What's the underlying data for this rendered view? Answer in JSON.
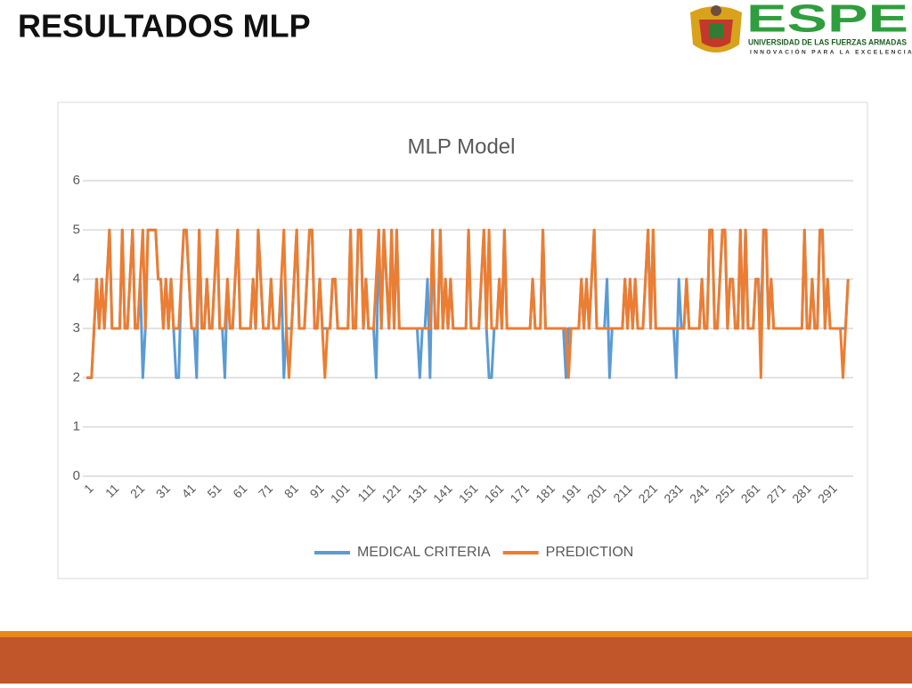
{
  "header": {
    "title": "RESULTADOS MLP",
    "logo_text": "ESPE",
    "logo_subtitle": "UNIVERSIDAD DE LAS FUERZAS ARMADAS",
    "logo_tagline": "INNOVACIÓN PARA LA EXCELENCIA"
  },
  "chart_data": {
    "type": "line",
    "title": "MLP Model",
    "grid": true,
    "legend": "bottom",
    "xlim": [
      1,
      300
    ],
    "xticks": [
      1,
      11,
      21,
      31,
      41,
      51,
      61,
      71,
      81,
      91,
      101,
      111,
      121,
      131,
      141,
      151,
      161,
      171,
      181,
      191,
      201,
      211,
      221,
      231,
      241,
      251,
      261,
      271,
      281,
      291
    ],
    "ylim": [
      0,
      6
    ],
    "yticks": [
      0,
      1,
      2,
      3,
      4,
      5,
      6
    ],
    "x": [
      1,
      2,
      3,
      4,
      5,
      6,
      7,
      8,
      9,
      10,
      11,
      12,
      13,
      14,
      15,
      16,
      17,
      18,
      19,
      20,
      21,
      22,
      23,
      24,
      25,
      26,
      27,
      28,
      29,
      30,
      31,
      32,
      33,
      34,
      35,
      36,
      37,
      38,
      39,
      40,
      41,
      42,
      43,
      44,
      45,
      46,
      47,
      48,
      49,
      50,
      51,
      52,
      53,
      54,
      55,
      56,
      57,
      58,
      59,
      60,
      61,
      62,
      63,
      64,
      65,
      66,
      67,
      68,
      69,
      70,
      71,
      72,
      73,
      74,
      75,
      76,
      77,
      78,
      79,
      80,
      81,
      82,
      83,
      84,
      85,
      86,
      87,
      88,
      89,
      90,
      91,
      92,
      93,
      94,
      95,
      96,
      97,
      98,
      99,
      100,
      101,
      102,
      103,
      104,
      105,
      106,
      107,
      108,
      109,
      110,
      111,
      112,
      113,
      114,
      115,
      116,
      117,
      118,
      119,
      120,
      121,
      122,
      123,
      124,
      125,
      126,
      127,
      128,
      129,
      130,
      131,
      132,
      133,
      134,
      135,
      136,
      137,
      138,
      139,
      140,
      141,
      142,
      143,
      144,
      145,
      146,
      147,
      148,
      149,
      150,
      151,
      152,
      153,
      154,
      155,
      156,
      157,
      158,
      159,
      160,
      161,
      162,
      163,
      164,
      165,
      166,
      167,
      168,
      169,
      170,
      171,
      172,
      173,
      174,
      175,
      176,
      177,
      178,
      179,
      180,
      181,
      182,
      183,
      184,
      185,
      186,
      187,
      188,
      189,
      190,
      191,
      192,
      193,
      194,
      195,
      196,
      197,
      198,
      199,
      200,
      201,
      202,
      203,
      204,
      205,
      206,
      207,
      208,
      209,
      210,
      211,
      212,
      213,
      214,
      215,
      216,
      217,
      218,
      219,
      220,
      221,
      222,
      223,
      224,
      225,
      226,
      227,
      228,
      229,
      230,
      231,
      232,
      233,
      234,
      235,
      236,
      237,
      238,
      239,
      240,
      241,
      242,
      243,
      244,
      245,
      246,
      247,
      248,
      249,
      250,
      251,
      252,
      253,
      254,
      255,
      256,
      257,
      258,
      259,
      260,
      261,
      262,
      263,
      264,
      265,
      266,
      267,
      268,
      269,
      270,
      271,
      272,
      273,
      274,
      275,
      276,
      277,
      278,
      279,
      280,
      281,
      282,
      283,
      284,
      285,
      286,
      287,
      288,
      289,
      290,
      291,
      292,
      293,
      294,
      295,
      296,
      297,
      298
    ],
    "series": [
      {
        "name": "MEDICAL CRITERIA",
        "color": "#5b9bd5",
        "values": [
          2,
          2,
          2,
          3,
          4,
          3,
          4,
          3,
          4,
          5,
          3,
          3,
          3,
          3,
          5,
          3,
          3,
          4,
          5,
          3,
          3,
          4,
          2,
          3,
          5,
          5,
          5,
          5,
          4,
          4,
          3,
          4,
          3,
          4,
          3,
          2,
          2,
          4,
          5,
          5,
          4,
          3,
          3,
          2,
          5,
          3,
          3,
          4,
          3,
          3,
          4,
          5,
          3,
          3,
          2,
          4,
          3,
          3,
          4,
          5,
          3,
          3,
          3,
          3,
          3,
          4,
          3,
          5,
          4,
          3,
          3,
          3,
          4,
          3,
          3,
          3,
          4,
          2,
          3,
          3,
          3,
          4,
          5,
          3,
          3,
          3,
          4,
          5,
          5,
          3,
          3,
          4,
          3,
          3,
          3,
          3,
          4,
          4,
          3,
          3,
          3,
          3,
          3,
          5,
          3,
          3,
          5,
          5,
          3,
          4,
          3,
          3,
          3,
          2,
          5,
          3,
          5,
          4,
          3,
          5,
          3,
          5,
          3,
          3,
          3,
          3,
          3,
          3,
          3,
          3,
          2,
          3,
          3,
          4,
          2,
          5,
          3,
          3,
          5,
          3,
          4,
          3,
          4,
          3,
          3,
          3,
          3,
          3,
          3,
          5,
          3,
          3,
          3,
          3,
          4,
          5,
          3,
          2,
          2,
          3,
          3,
          4,
          3,
          5,
          3,
          3,
          3,
          3,
          3,
          3,
          3,
          3,
          3,
          3,
          4,
          3,
          3,
          3,
          5,
          3,
          3,
          3,
          3,
          3,
          3,
          3,
          3,
          2,
          3,
          3,
          3,
          3,
          3,
          4,
          3,
          4,
          3,
          4,
          5,
          3,
          3,
          3,
          3,
          4,
          2,
          3,
          3,
          3,
          3,
          3,
          4,
          3,
          4,
          3,
          4,
          3,
          3,
          3,
          4,
          5,
          3,
          5,
          3,
          3,
          3,
          3,
          3,
          3,
          3,
          3,
          2,
          4,
          3,
          3,
          4,
          3,
          3,
          3,
          3,
          3,
          4,
          3,
          3,
          5,
          5,
          3,
          3,
          4,
          5,
          5,
          3,
          4,
          4,
          3,
          3,
          5,
          3,
          5,
          3,
          3,
          3,
          4,
          4,
          3,
          5,
          5,
          3,
          4,
          3,
          3,
          3,
          3,
          3,
          3,
          3,
          3,
          3,
          3,
          3,
          3,
          5,
          3,
          3,
          4,
          3,
          3,
          5,
          5,
          3,
          4,
          3,
          3,
          3,
          3,
          3,
          3,
          3,
          4
        ]
      },
      {
        "name": "PREDICTION",
        "color": "#ed7d31",
        "values": [
          2,
          2,
          2,
          3,
          4,
          3,
          4,
          3,
          4,
          5,
          3,
          3,
          3,
          3,
          5,
          3,
          3,
          4,
          5,
          3,
          3,
          4,
          5,
          3,
          5,
          5,
          5,
          5,
          4,
          4,
          3,
          4,
          3,
          4,
          3,
          3,
          3,
          4,
          5,
          5,
          4,
          3,
          3,
          3,
          5,
          3,
          3,
          4,
          3,
          3,
          4,
          5,
          3,
          3,
          3,
          4,
          3,
          3,
          4,
          5,
          3,
          3,
          3,
          3,
          3,
          4,
          3,
          5,
          4,
          3,
          3,
          3,
          4,
          3,
          3,
          3,
          4,
          5,
          3,
          2,
          3,
          4,
          5,
          3,
          3,
          3,
          4,
          5,
          5,
          3,
          3,
          4,
          3,
          2,
          3,
          3,
          4,
          4,
          3,
          3,
          3,
          3,
          3,
          5,
          3,
          3,
          5,
          5,
          3,
          4,
          3,
          3,
          3,
          4,
          5,
          3,
          5,
          4,
          3,
          5,
          3,
          5,
          3,
          3,
          3,
          3,
          3,
          3,
          3,
          3,
          3,
          3,
          3,
          3,
          3,
          5,
          3,
          3,
          5,
          3,
          4,
          3,
          4,
          3,
          3,
          3,
          3,
          3,
          3,
          5,
          3,
          3,
          3,
          3,
          4,
          5,
          3,
          5,
          3,
          3,
          3,
          4,
          3,
          5,
          3,
          3,
          3,
          3,
          3,
          3,
          3,
          3,
          3,
          3,
          4,
          3,
          3,
          3,
          5,
          3,
          3,
          3,
          3,
          3,
          3,
          3,
          3,
          3,
          2,
          3,
          3,
          3,
          3,
          4,
          3,
          4,
          3,
          4,
          5,
          3,
          3,
          3,
          3,
          3,
          3,
          3,
          3,
          3,
          3,
          3,
          4,
          3,
          4,
          3,
          4,
          3,
          3,
          3,
          4,
          5,
          3,
          5,
          3,
          3,
          3,
          3,
          3,
          3,
          3,
          3,
          3,
          3,
          3,
          3,
          4,
          3,
          3,
          3,
          3,
          3,
          4,
          3,
          3,
          5,
          5,
          3,
          3,
          4,
          5,
          5,
          3,
          4,
          4,
          3,
          3,
          5,
          3,
          5,
          3,
          3,
          3,
          4,
          4,
          2,
          5,
          5,
          3,
          4,
          3,
          3,
          3,
          3,
          3,
          3,
          3,
          3,
          3,
          3,
          3,
          3,
          5,
          3,
          3,
          4,
          3,
          3,
          5,
          5,
          3,
          4,
          3,
          3,
          3,
          3,
          3,
          2,
          3,
          4
        ]
      }
    ]
  }
}
